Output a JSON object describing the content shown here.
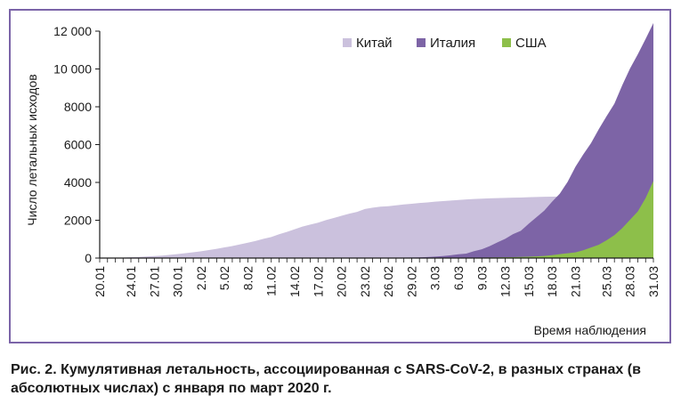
{
  "chart_data": {
    "type": "area",
    "stacked": false,
    "x": [
      "20.01",
      "21.01",
      "22.01",
      "23.01",
      "24.01",
      "25.01",
      "26.01",
      "27.01",
      "28.01",
      "29.01",
      "30.01",
      "31.01",
      "1.02",
      "2.02",
      "3.02",
      "4.02",
      "5.02",
      "6.02",
      "7.02",
      "8.02",
      "9.02",
      "10.02",
      "11.02",
      "12.02",
      "13.02",
      "14.02",
      "15.02",
      "16.02",
      "17.02",
      "18.02",
      "19.02",
      "20.02",
      "21.02",
      "22.02",
      "23.02",
      "24.02",
      "25.02",
      "26.02",
      "27.02",
      "28.02",
      "29.02",
      "1.03",
      "2.03",
      "3.03",
      "4.03",
      "5.03",
      "6.03",
      "7.03",
      "8.03",
      "9.03",
      "10.03",
      "11.03",
      "12.03",
      "13.03",
      "14.03",
      "15.03",
      "16.03",
      "17.03",
      "18.03",
      "19.03",
      "20.03",
      "21.03",
      "22.03",
      "23.03",
      "24.03",
      "25.03",
      "26.03",
      "27.03",
      "28.03",
      "29.03",
      "30.03",
      "31.03"
    ],
    "xticks": [
      "20.01",
      "24.01",
      "27.01",
      "30.01",
      "2.02",
      "5.02",
      "8.02",
      "11.02",
      "14.02",
      "17.02",
      "20.02",
      "23.02",
      "26.02",
      "29.02",
      "3.03",
      "6.03",
      "9.03",
      "12.03",
      "15.03",
      "18.03",
      "21.03",
      "25.03",
      "28.03",
      "31.03"
    ],
    "series": [
      {
        "name": "Китай",
        "color": "#cbc1dd",
        "values": [
          6,
          9,
          17,
          25,
          41,
          56,
          80,
          106,
          132,
          170,
          213,
          259,
          304,
          361,
          425,
          490,
          563,
          636,
          722,
          811,
          908,
          1016,
          1113,
          1259,
          1380,
          1523,
          1665,
          1770,
          1868,
          2004,
          2118,
          2236,
          2345,
          2442,
          2592,
          2663,
          2715,
          2744,
          2788,
          2835,
          2870,
          2912,
          2943,
          2981,
          3013,
          3042,
          3073,
          3100,
          3123,
          3139,
          3161,
          3172,
          3180,
          3194,
          3203,
          3217,
          3231,
          3242,
          3248,
          3253,
          3261,
          3270,
          3276,
          3277,
          3281,
          3285,
          3287,
          3291,
          3295,
          3300,
          3304,
          3309
        ]
      },
      {
        "name": "Италия",
        "color": "#7d64a6",
        "values": [
          0,
          0,
          0,
          0,
          0,
          0,
          0,
          0,
          0,
          0,
          0,
          0,
          0,
          0,
          0,
          0,
          0,
          0,
          0,
          0,
          0,
          0,
          0,
          0,
          0,
          0,
          0,
          0,
          0,
          0,
          0,
          0,
          1,
          2,
          3,
          7,
          10,
          12,
          17,
          21,
          29,
          34,
          52,
          79,
          107,
          148,
          197,
          233,
          366,
          463,
          631,
          827,
          1016,
          1266,
          1441,
          1809,
          2158,
          2503,
          2978,
          3405,
          4032,
          4825,
          5476,
          6077,
          6820,
          7503,
          8165,
          9134,
          10023,
          10779,
          11591,
          12428
        ]
      },
      {
        "name": "США",
        "color": "#8dbf4a",
        "values": [
          0,
          0,
          0,
          0,
          0,
          0,
          0,
          0,
          0,
          0,
          0,
          0,
          0,
          0,
          0,
          0,
          0,
          0,
          0,
          0,
          0,
          0,
          0,
          0,
          0,
          0,
          0,
          0,
          0,
          0,
          0,
          0,
          0,
          0,
          0,
          0,
          0,
          0,
          0,
          0,
          1,
          2,
          6,
          9,
          11,
          12,
          15,
          19,
          22,
          26,
          30,
          38,
          41,
          48,
          57,
          68,
          86,
          109,
          150,
          206,
          255,
          301,
          413,
          559,
          706,
          942,
          1209,
          1581,
          2026,
          2467,
          3170,
          4076
        ]
      }
    ],
    "ylabel": "Число летальных исходов",
    "xlabel": "Время наблюдения",
    "ylim": [
      0,
      12000
    ],
    "yticks": [
      0,
      2000,
      4000,
      6000,
      8000,
      10000,
      12000
    ],
    "ytick_labels": [
      "0",
      "2000",
      "4000",
      "6000",
      "8000",
      "10 000",
      "12 000"
    ],
    "legend_position": "top-right",
    "grid": false
  },
  "caption": "Рис. 2. Кумулятивная летальность, ассоциированная с SARS-CoV-2, в разных странах (в абсолютных числах) с января по март 2020 г."
}
